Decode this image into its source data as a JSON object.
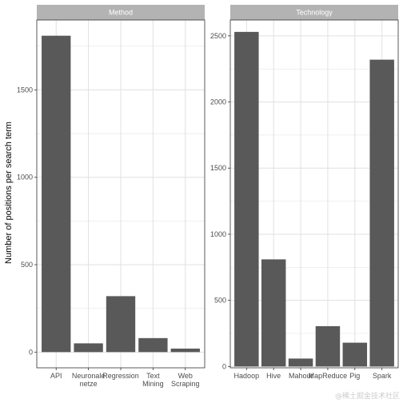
{
  "chart_data": {
    "type": "bar",
    "ylabel": "Number of positions per search term",
    "grid": true,
    "colors": {
      "bar": "#595959",
      "strip": "#b3b3b3",
      "grid": "#e0e0e0",
      "panel_border": "#333333"
    },
    "panels": [
      {
        "title": "Method",
        "categories": [
          "API",
          "Neuronale\nnetze",
          "Regression",
          "Text\nMining",
          "Web\nScraping"
        ],
        "values": [
          1810,
          50,
          320,
          80,
          20
        ],
        "ylim": [
          -90,
          1900
        ],
        "yticks": [
          0,
          500,
          1000,
          1500
        ]
      },
      {
        "title": "Technology",
        "categories": [
          "Hadoop",
          "Hive",
          "Mahout",
          "MapReduce",
          "Pig",
          "Spark"
        ],
        "values": [
          2530,
          810,
          60,
          305,
          180,
          2320
        ],
        "ylim": [
          -10,
          2620
        ],
        "yticks": [
          0,
          500,
          1000,
          1500,
          2000,
          2500
        ]
      }
    ]
  },
  "watermark": "@稀土掘金技术社区"
}
